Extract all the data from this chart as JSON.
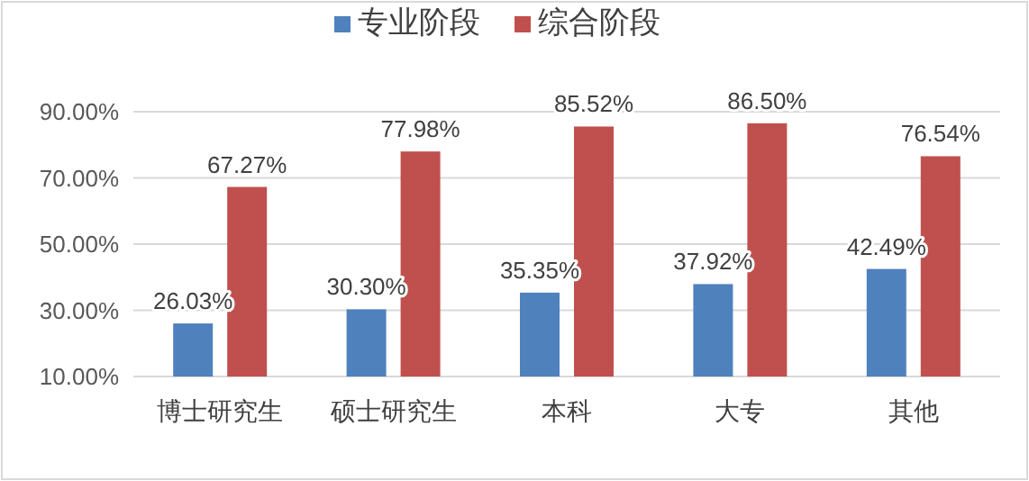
{
  "chart_data": {
    "type": "bar",
    "categories": [
      "博士研究生",
      "硕士研究生",
      "本科",
      "大专",
      "其他"
    ],
    "series": [
      {
        "name": "专业阶段",
        "color": "#4f81bd",
        "values": [
          26.03,
          30.3,
          35.35,
          37.92,
          42.49
        ],
        "value_labels": [
          "26.03%",
          "30.30%",
          "35.35%",
          "37.92%",
          "42.49%"
        ]
      },
      {
        "name": "综合阶段",
        "color": "#c0504d",
        "values": [
          67.27,
          77.98,
          85.52,
          86.5,
          76.54
        ],
        "value_labels": [
          "67.27%",
          "77.98%",
          "85.52%",
          "86.50%",
          "76.54%"
        ]
      }
    ],
    "ylim": [
      10,
      90
    ],
    "yticks": [
      {
        "value": 10,
        "label": "10.00%"
      },
      {
        "value": 30,
        "label": "30.00%"
      },
      {
        "value": 50,
        "label": "50.00%"
      },
      {
        "value": 70,
        "label": "70.00%"
      },
      {
        "value": 90,
        "label": "90.00%"
      }
    ],
    "grid": "y",
    "legend": "top"
  }
}
